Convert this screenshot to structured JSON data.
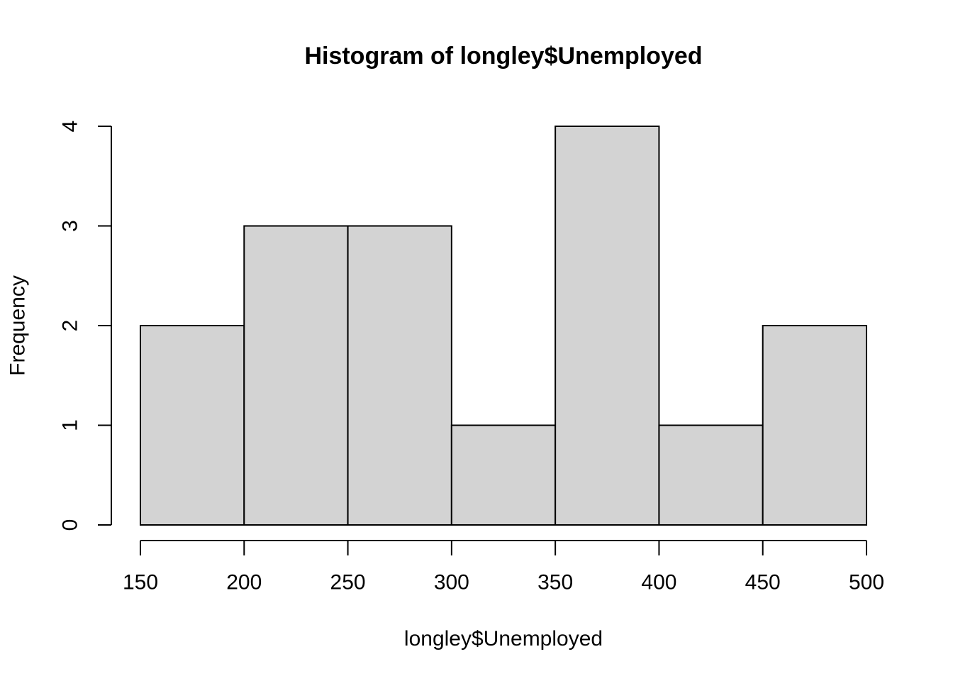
{
  "figure": {
    "background": "#ffffff"
  },
  "chart_data": {
    "type": "bar",
    "subtype": "histogram",
    "title": "Histogram of longley$Unemployed",
    "xlabel": "longley$Unemployed",
    "ylabel": "Frequency",
    "bins": {
      "breaks": [
        150,
        200,
        250,
        300,
        350,
        400,
        450,
        500
      ],
      "counts": [
        2,
        3,
        3,
        1,
        4,
        1,
        2
      ]
    },
    "x_ticks": [
      150,
      200,
      250,
      300,
      350,
      400,
      450,
      500
    ],
    "y_ticks": [
      0,
      1,
      2,
      3,
      4
    ],
    "xlim": [
      150,
      500
    ],
    "ylim": [
      0,
      4
    ],
    "grid": false,
    "legend": false,
    "colors": {
      "bar_fill": "#d3d3d3",
      "bar_stroke": "#000000",
      "axis": "#000000",
      "text": "#000000"
    }
  }
}
